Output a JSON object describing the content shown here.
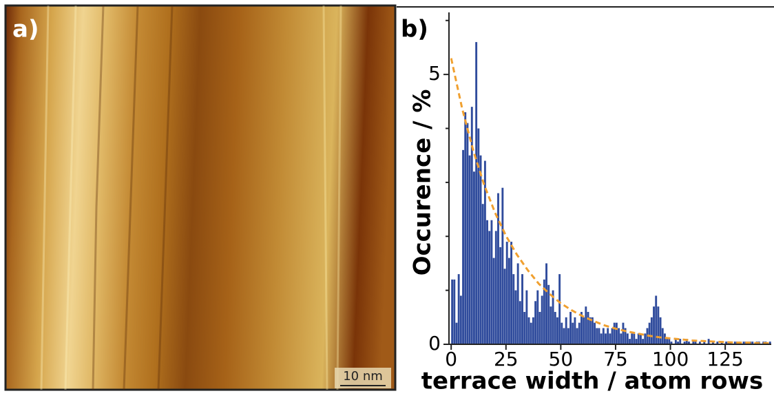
{
  "image": {
    "label": "a)",
    "scale_bar": "10 nm"
  },
  "chart_data": {
    "type": "histogram",
    "panel_label": "b)",
    "xlabel": "terrace width / atom rows",
    "ylabel": "Occurence / %",
    "color": "#2f4b9c",
    "bins": [
      0,
      1,
      2,
      3,
      4,
      5,
      6,
      7,
      8,
      9,
      10,
      11,
      12,
      13,
      14,
      15,
      16,
      17,
      18,
      19,
      20,
      21,
      22,
      23,
      24,
      25,
      26,
      27,
      28,
      29,
      30,
      31,
      32,
      33,
      34,
      35,
      36,
      37,
      38,
      39,
      40,
      41,
      42,
      43,
      44,
      45,
      46,
      47,
      48,
      49,
      50,
      51,
      52,
      53,
      54,
      55,
      56,
      57,
      58,
      59,
      60,
      61,
      62,
      63,
      64,
      65,
      66,
      67,
      68,
      69,
      70,
      71,
      72,
      73,
      74,
      75,
      76,
      77,
      78,
      79,
      80,
      81,
      82,
      83,
      84,
      85,
      86,
      87,
      88,
      89,
      90,
      91,
      92,
      93,
      94,
      95,
      96,
      97,
      98,
      99,
      100,
      101,
      102,
      103,
      104,
      105,
      106,
      107,
      108,
      109,
      110,
      111,
      112,
      113,
      114,
      115,
      116,
      117,
      118,
      119,
      120,
      121,
      122,
      123,
      124,
      125,
      126,
      127,
      128,
      129,
      130,
      131,
      132,
      133,
      134,
      135,
      136,
      137,
      138,
      139,
      140,
      141,
      142,
      143,
      144,
      145,
      146
    ],
    "counts": [
      1.2,
      1.2,
      0.4,
      1.3,
      0.9,
      3.6,
      4.3,
      4.1,
      3.5,
      4.4,
      3.2,
      5.6,
      4.0,
      3.5,
      2.6,
      3.4,
      2.3,
      2.1,
      2.3,
      1.6,
      2.1,
      2.8,
      1.8,
      2.9,
      1.4,
      1.9,
      1.6,
      1.9,
      1.3,
      1.0,
      1.5,
      0.8,
      1.3,
      0.6,
      1.0,
      0.5,
      0.4,
      0.5,
      0.8,
      1.0,
      0.6,
      0.9,
      1.2,
      1.5,
      1.1,
      0.7,
      1.0,
      0.6,
      0.5,
      1.3,
      0.4,
      0.3,
      0.5,
      0.3,
      0.6,
      0.4,
      0.5,
      0.3,
      0.4,
      0.6,
      0.5,
      0.7,
      0.6,
      0.5,
      0.5,
      0.4,
      0.3,
      0.3,
      0.2,
      0.3,
      0.2,
      0.3,
      0.2,
      0.3,
      0.4,
      0.4,
      0.3,
      0.2,
      0.4,
      0.3,
      0.2,
      0.1,
      0.2,
      0.2,
      0.1,
      0.2,
      0.2,
      0.1,
      0.2,
      0.3,
      0.4,
      0.5,
      0.7,
      0.9,
      0.7,
      0.5,
      0.3,
      0.2,
      0.1,
      0.1,
      0.05,
      0,
      0.1,
      0.05,
      0.1,
      0,
      0.05,
      0.1,
      0.05,
      0,
      0.05,
      0.05,
      0,
      0.05,
      0,
      0.05,
      0,
      0.1,
      0,
      0.05,
      0,
      0.05,
      0,
      0.05,
      0,
      0.05,
      0.05,
      0.05,
      0,
      0.05,
      0.05,
      0.05,
      0,
      0.05,
      0.05,
      0.05,
      0.05,
      0.05,
      0,
      0.05,
      0.05,
      0,
      0.05,
      0.05,
      0,
      0.05
    ],
    "fit": {
      "color": "#f0a030",
      "x": [
        0,
        5,
        10,
        15,
        20,
        25,
        30,
        35,
        40,
        45,
        50,
        55,
        60,
        65,
        70,
        75,
        80,
        85,
        90,
        95,
        100,
        105,
        110,
        115,
        120,
        125,
        130,
        135,
        140,
        145
      ],
      "values": [
        5.3,
        4.37,
        3.6,
        2.96,
        2.44,
        2.01,
        1.66,
        1.37,
        1.12,
        0.93,
        0.76,
        0.63,
        0.52,
        0.43,
        0.35,
        0.29,
        0.24,
        0.2,
        0.16,
        0.13,
        0.11,
        0.09,
        0.07,
        0.06,
        0.05,
        0.04,
        0.03,
        0.03,
        0.02,
        0.02
      ]
    },
    "xlim": [
      -1,
      146
    ],
    "ylim": [
      0,
      6.15
    ],
    "xticks": [
      0,
      25,
      50,
      75,
      100,
      125
    ],
    "yticks": [
      0,
      5
    ],
    "yminor": [
      1,
      2,
      3,
      4,
      6
    ]
  }
}
